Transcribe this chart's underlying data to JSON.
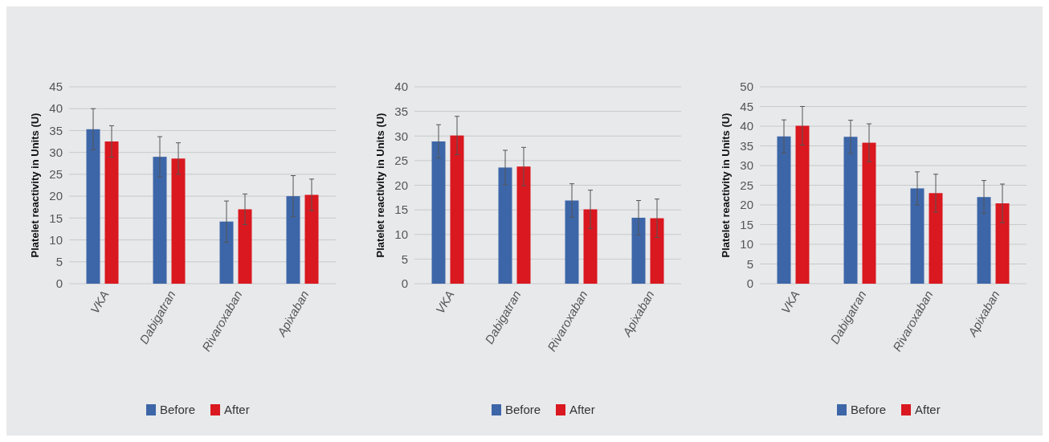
{
  "chart_data": [
    {
      "type": "bar",
      "ylabel": "Platelet reactivity in Units (U)",
      "categories": [
        "VKA",
        "Dabigatran",
        "Rivaroxaban",
        "Apixaban"
      ],
      "ylim": [
        0,
        45
      ],
      "yticks": [
        0,
        5,
        10,
        15,
        20,
        25,
        30,
        35,
        40,
        45
      ],
      "grid": "y",
      "legend": "bottom",
      "series": [
        {
          "name": "Before",
          "color": "#3d66a8",
          "values": [
            35.3,
            29,
            14.2,
            20
          ],
          "errors": [
            4.7,
            4.6,
            4.7,
            4.7
          ]
        },
        {
          "name": "After",
          "color": "#d9181f",
          "values": [
            32.5,
            28.6,
            17,
            20.3
          ],
          "errors": [
            3.6,
            3.6,
            3.5,
            3.6
          ]
        }
      ]
    },
    {
      "type": "bar",
      "ylabel": "Platelet reactivity in Units (U)",
      "categories": [
        "VKA",
        "Dabigatran",
        "Rivaroxaban",
        "Apixaban"
      ],
      "ylim": [
        0,
        40
      ],
      "yticks": [
        0,
        5,
        10,
        15,
        20,
        25,
        30,
        35,
        40
      ],
      "grid": "y",
      "legend": "bottom",
      "series": [
        {
          "name": "Before",
          "color": "#3d66a8",
          "values": [
            28.9,
            23.6,
            16.9,
            13.4
          ],
          "errors": [
            3.4,
            3.5,
            3.4,
            3.5
          ]
        },
        {
          "name": "After",
          "color": "#d9181f",
          "values": [
            30.1,
            23.8,
            15.1,
            13.3
          ],
          "errors": [
            3.9,
            3.9,
            3.9,
            3.9
          ]
        }
      ]
    },
    {
      "type": "bar",
      "ylabel": "Platelet reactivity in Units (U)",
      "categories": [
        "VKA",
        "Dabigatran",
        "Rivaroxaban",
        "Apixaban"
      ],
      "ylim": [
        0,
        50
      ],
      "yticks": [
        0,
        5,
        10,
        15,
        20,
        25,
        30,
        35,
        40,
        45,
        50
      ],
      "grid": "y",
      "legend": "bottom",
      "series": [
        {
          "name": "Before",
          "color": "#3d66a8",
          "values": [
            37.4,
            37.3,
            24.2,
            22
          ],
          "errors": [
            4.2,
            4.2,
            4.2,
            4.2
          ]
        },
        {
          "name": "After",
          "color": "#d9181f",
          "values": [
            40.1,
            35.8,
            23,
            20.4
          ],
          "errors": [
            4.9,
            4.8,
            4.8,
            4.9
          ]
        }
      ]
    }
  ]
}
